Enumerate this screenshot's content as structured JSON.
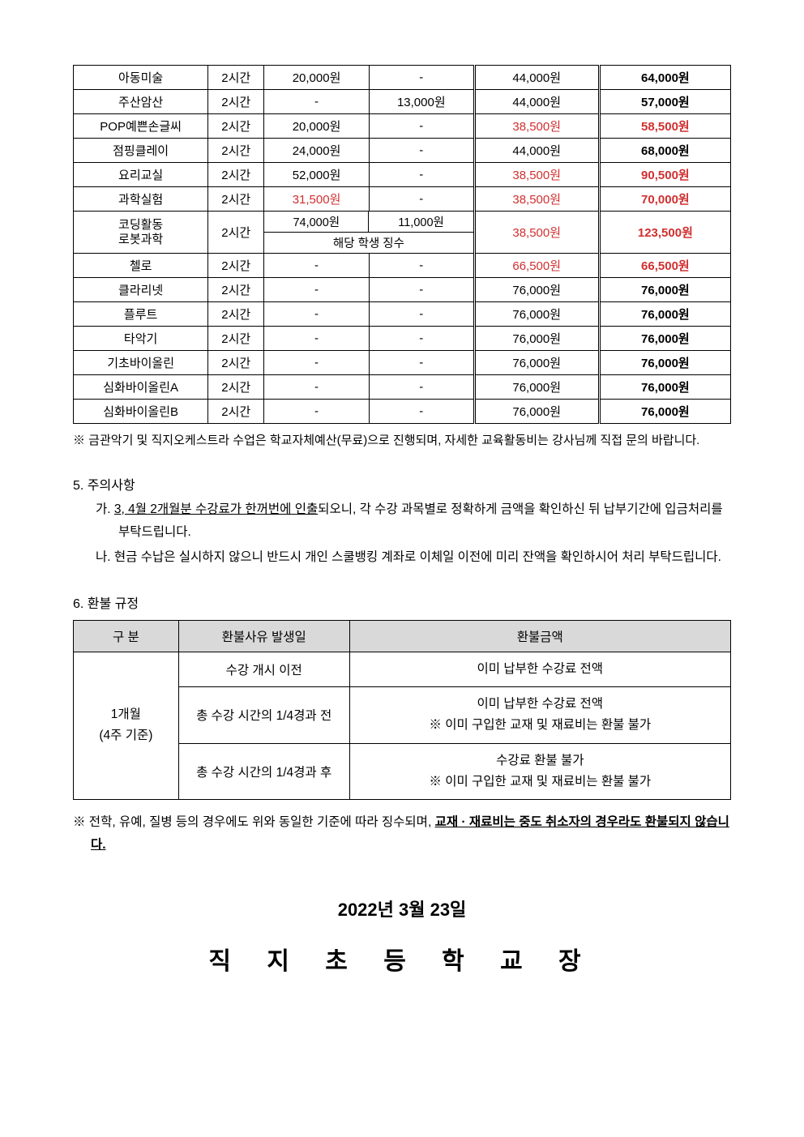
{
  "fee_rows": [
    {
      "name": "아동미술",
      "time": "2시간",
      "a": "20,000원",
      "b": "-",
      "c": "44,000원",
      "total": "64,000원",
      "a_red": false,
      "c_red": false,
      "total_red": false
    },
    {
      "name": "주산암산",
      "time": "2시간",
      "a": "-",
      "b": "13,000원",
      "c": "44,000원",
      "total": "57,000원",
      "a_red": false,
      "c_red": false,
      "total_red": false
    },
    {
      "name": "POP예쁜손글씨",
      "time": "2시간",
      "a": "20,000원",
      "b": "-",
      "c": "38,500원",
      "total": "58,500원",
      "a_red": false,
      "c_red": true,
      "total_red": true
    },
    {
      "name": "점핑클레이",
      "time": "2시간",
      "a": "24,000원",
      "b": "-",
      "c": "44,000원",
      "total": "68,000원",
      "a_red": false,
      "c_red": false,
      "total_red": false
    },
    {
      "name": "요리교실",
      "time": "2시간",
      "a": "52,000원",
      "b": "-",
      "c": "38,500원",
      "total": "90,500원",
      "a_red": false,
      "c_red": true,
      "total_red": true
    },
    {
      "name": "과학실험",
      "time": "2시간",
      "a": "31,500원",
      "b": "-",
      "c": "38,500원",
      "total": "70,000원",
      "a_red": true,
      "c_red": true,
      "total_red": true
    }
  ],
  "coding_row": {
    "name": "코딩활동\n로봇과학",
    "time": "2시간",
    "a": "74,000원",
    "b": "11,000원",
    "sub": "해당 학생 징수",
    "c": "38,500원",
    "total": "123,500원"
  },
  "fee_rows2": [
    {
      "name": "첼로",
      "time": "2시간",
      "a": "-",
      "b": "-",
      "c": "66,500원",
      "total": "66,500원",
      "c_red": true,
      "total_red": true
    },
    {
      "name": "클라리넷",
      "time": "2시간",
      "a": "-",
      "b": "-",
      "c": "76,000원",
      "total": "76,000원",
      "c_red": false,
      "total_red": false
    },
    {
      "name": "플루트",
      "time": "2시간",
      "a": "-",
      "b": "-",
      "c": "76,000원",
      "total": "76,000원",
      "c_red": false,
      "total_red": false
    },
    {
      "name": "타악기",
      "time": "2시간",
      "a": "-",
      "b": "-",
      "c": "76,000원",
      "total": "76,000원",
      "c_red": false,
      "total_red": false
    },
    {
      "name": "기초바이올린",
      "time": "2시간",
      "a": "-",
      "b": "-",
      "c": "76,000원",
      "total": "76,000원",
      "c_red": false,
      "total_red": false
    },
    {
      "name": "심화바이올린A",
      "time": "2시간",
      "a": "-",
      "b": "-",
      "c": "76,000원",
      "total": "76,000원",
      "c_red": false,
      "total_red": false
    },
    {
      "name": "심화바이올린B",
      "time": "2시간",
      "a": "-",
      "b": "-",
      "c": "76,000원",
      "total": "76,000원",
      "c_red": false,
      "total_red": false
    }
  ],
  "fee_note": "※  금관악기 및 직지오케스트라 수업은 학교자체예산(무료)으로 진행되며, 자세한 교육활동비는 강사님께 직접 문의 바랍니다.",
  "sec5": {
    "title": "5.  주의사항",
    "item_a_prefix": "가. ",
    "item_a_u": "3, 4월 2개월분 수강료가 한꺼번에 인출",
    "item_a_rest": "되오니, 각 수강 과목별로 정확하게 금액을 확인하신 뒤 납부기간에 입금처리를 부탁드립니다.",
    "item_b": "나. 현금 수납은 실시하지 않으니 반드시 개인 스쿨뱅킹 계좌로 이체일 이전에 미리 잔액을 확인하시어 처리 부탁드립니다."
  },
  "sec6": {
    "title": "6.  환불 규정",
    "headers": {
      "c0": "구    분",
      "c1": "환불사유 발생일",
      "c2": "환불금액"
    },
    "period": "1개월\n(4주 기준)",
    "rows": [
      {
        "reason": "수강 개시 이전",
        "amount": "이미 납부한 수강료 전액"
      },
      {
        "reason": "총 수강 시간의 1/4경과 전",
        "amount": "이미 납부한 수강료 전액\n※ 이미 구입한 교재 및 재료비는 환불 불가"
      },
      {
        "reason": "총 수강 시간의 1/4경과 후",
        "amount": "수강료 환불 불가\n※ 이미 구입한 교재 및 재료비는 환불 불가"
      }
    ]
  },
  "footer_note_prefix": "※  전학, 유예, 질병 등의 경우에도 위와 동일한 기준에 따라 징수되며, ",
  "footer_note_u": "교재 · 재료비는 중도 취소자의 경우라도 환불되지 않습니다.",
  "date": "2022년  3월  23일",
  "signature": "직 지 초 등 학 교 장"
}
